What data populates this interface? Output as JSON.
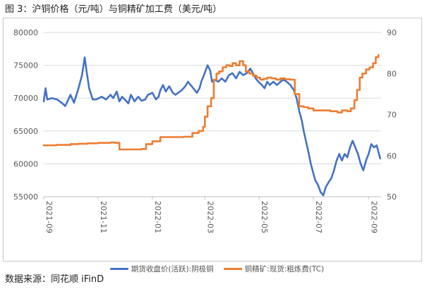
{
  "figure_title": "图 3：沪铜价格（元/吨）与铜精矿加工费（美元/吨）",
  "source_note": "数据来源：同花顺 iFinD",
  "chart_data": {
    "type": "line",
    "left_axis": {
      "ylim": [
        55000,
        80000
      ],
      "ticks": [
        "80000",
        "75000",
        "70000",
        "65000",
        "60000",
        "55000"
      ]
    },
    "right_axis": {
      "ylim": [
        50,
        90
      ],
      "ticks": [
        "90",
        "80",
        "70",
        "60",
        "50"
      ]
    },
    "x_range": [
      "2021-09-01",
      "2022-09-15"
    ],
    "x_ticks": [
      {
        "date": "2021-09-01",
        "label": "2021-09"
      },
      {
        "date": "2021-11-01",
        "label": "2021-11"
      },
      {
        "date": "2022-01-01",
        "label": "2022-01"
      },
      {
        "date": "2022-03-01",
        "label": "2022-03"
      },
      {
        "date": "2022-05-01",
        "label": "2022-05"
      },
      {
        "date": "2022-07-01",
        "label": "2022-07"
      },
      {
        "date": "2022-09-01",
        "label": "2022-09"
      }
    ],
    "series": [
      {
        "name": "期货收盘价(活跃):阴极铜",
        "axis": "left",
        "color": "#4472c4",
        "points": [
          [
            "2021-09-01",
            69500
          ],
          [
            "2021-09-03",
            71500
          ],
          [
            "2021-09-05",
            69800
          ],
          [
            "2021-09-10",
            70000
          ],
          [
            "2021-09-16",
            69800
          ],
          [
            "2021-09-22",
            69200
          ],
          [
            "2021-09-25",
            68800
          ],
          [
            "2021-09-28",
            69600
          ],
          [
            "2021-10-01",
            70500
          ],
          [
            "2021-10-05",
            69300
          ],
          [
            "2021-10-10",
            71500
          ],
          [
            "2021-10-14",
            73500
          ],
          [
            "2021-10-17",
            76200
          ],
          [
            "2021-10-19",
            74200
          ],
          [
            "2021-10-22",
            71500
          ],
          [
            "2021-10-26",
            69800
          ],
          [
            "2021-10-30",
            69800
          ],
          [
            "2021-11-05",
            70200
          ],
          [
            "2021-11-10",
            69800
          ],
          [
            "2021-11-15",
            70500
          ],
          [
            "2021-11-18",
            70000
          ],
          [
            "2021-11-22",
            71000
          ],
          [
            "2021-11-25",
            69500
          ],
          [
            "2021-11-28",
            70200
          ],
          [
            "2021-12-01",
            69800
          ],
          [
            "2021-12-05",
            69200
          ],
          [
            "2021-12-08",
            70500
          ],
          [
            "2021-12-12",
            69500
          ],
          [
            "2021-12-16",
            70200
          ],
          [
            "2021-12-20",
            69600
          ],
          [
            "2021-12-24",
            69800
          ],
          [
            "2021-12-27",
            70500
          ],
          [
            "2022-01-01",
            70800
          ],
          [
            "2022-01-05",
            69800
          ],
          [
            "2022-01-08",
            70200
          ],
          [
            "2022-01-10",
            71200
          ],
          [
            "2022-01-13",
            72000
          ],
          [
            "2022-01-16",
            71000
          ],
          [
            "2022-01-20",
            71800
          ],
          [
            "2022-01-24",
            70800
          ],
          [
            "2022-01-27",
            70500
          ],
          [
            "2022-01-30",
            70800
          ],
          [
            "2022-02-03",
            71200
          ],
          [
            "2022-02-07",
            71800
          ],
          [
            "2022-02-10",
            72500
          ],
          [
            "2022-02-13",
            72000
          ],
          [
            "2022-02-16",
            71500
          ],
          [
            "2022-02-20",
            70800
          ],
          [
            "2022-02-23",
            71500
          ],
          [
            "2022-02-25",
            72500
          ],
          [
            "2022-02-28",
            73500
          ],
          [
            "2022-03-04",
            75000
          ],
          [
            "2022-03-07",
            74200
          ],
          [
            "2022-03-09",
            72500
          ],
          [
            "2022-03-12",
            72800
          ],
          [
            "2022-03-16",
            72500
          ],
          [
            "2022-03-20",
            73000
          ],
          [
            "2022-03-24",
            72500
          ],
          [
            "2022-03-28",
            73500
          ],
          [
            "2022-04-01",
            73800
          ],
          [
            "2022-04-05",
            73000
          ],
          [
            "2022-04-09",
            74000
          ],
          [
            "2022-04-13",
            73500
          ],
          [
            "2022-04-17",
            73800
          ],
          [
            "2022-04-21",
            74500
          ],
          [
            "2022-04-24",
            73800
          ],
          [
            "2022-04-27",
            73000
          ],
          [
            "2022-04-30",
            72500
          ],
          [
            "2022-05-04",
            72000
          ],
          [
            "2022-05-07",
            71500
          ],
          [
            "2022-05-10",
            72500
          ],
          [
            "2022-05-13",
            72000
          ],
          [
            "2022-05-17",
            72500
          ],
          [
            "2022-05-21",
            72000
          ],
          [
            "2022-05-25",
            72500
          ],
          [
            "2022-05-28",
            72800
          ],
          [
            "2022-06-01",
            72500
          ],
          [
            "2022-06-05",
            72000
          ],
          [
            "2022-06-09",
            71200
          ],
          [
            "2022-06-12",
            70000
          ],
          [
            "2022-06-15",
            68000
          ],
          [
            "2022-06-18",
            66500
          ],
          [
            "2022-06-20",
            65000
          ],
          [
            "2022-06-22",
            63800
          ],
          [
            "2022-06-25",
            62000
          ],
          [
            "2022-06-28",
            60000
          ],
          [
            "2022-07-01",
            58500
          ],
          [
            "2022-07-03",
            57500
          ],
          [
            "2022-07-06",
            56800
          ],
          [
            "2022-07-09",
            55700
          ],
          [
            "2022-07-12",
            55200
          ],
          [
            "2022-07-15",
            56500
          ],
          [
            "2022-07-18",
            57200
          ],
          [
            "2022-07-21",
            57800
          ],
          [
            "2022-07-24",
            59000
          ],
          [
            "2022-07-27",
            60500
          ],
          [
            "2022-07-30",
            61500
          ],
          [
            "2022-08-02",
            60500
          ],
          [
            "2022-08-05",
            61500
          ],
          [
            "2022-08-08",
            61000
          ],
          [
            "2022-08-11",
            62500
          ],
          [
            "2022-08-14",
            63500
          ],
          [
            "2022-08-17",
            62500
          ],
          [
            "2022-08-20",
            61500
          ],
          [
            "2022-08-23",
            60000
          ],
          [
            "2022-08-26",
            59000
          ],
          [
            "2022-08-29",
            60500
          ],
          [
            "2022-09-01",
            61500
          ],
          [
            "2022-09-04",
            63000
          ],
          [
            "2022-09-07",
            62500
          ],
          [
            "2022-09-10",
            62800
          ],
          [
            "2022-09-14",
            60800
          ]
        ]
      },
      {
        "name": "铜精矿:现货:粗炼费(TC)",
        "axis": "right",
        "color": "#ed7d31",
        "step": true,
        "points": [
          [
            "2021-09-01",
            62.5
          ],
          [
            "2021-09-15",
            62.6
          ],
          [
            "2021-10-01",
            62.8
          ],
          [
            "2021-10-10",
            62.9
          ],
          [
            "2021-10-20",
            63.0
          ],
          [
            "2021-11-01",
            63.1
          ],
          [
            "2021-11-15",
            63.2
          ],
          [
            "2021-11-20",
            63.1
          ],
          [
            "2021-11-25",
            61.5
          ],
          [
            "2021-12-01",
            61.5
          ],
          [
            "2021-12-20",
            61.6
          ],
          [
            "2021-12-25",
            62.8
          ],
          [
            "2022-01-01",
            63.5
          ],
          [
            "2022-01-10",
            64.5
          ],
          [
            "2022-01-25",
            64.5
          ],
          [
            "2022-02-05",
            64.6
          ],
          [
            "2022-02-15",
            65.5
          ],
          [
            "2022-02-22",
            66.0
          ],
          [
            "2022-02-27",
            67.0
          ],
          [
            "2022-03-01",
            69.5
          ],
          [
            "2022-03-04",
            72.0
          ],
          [
            "2022-03-08",
            74.0
          ],
          [
            "2022-03-11",
            78.5
          ],
          [
            "2022-03-14",
            80.0
          ],
          [
            "2022-03-17",
            80.5
          ],
          [
            "2022-03-21",
            81.5
          ],
          [
            "2022-03-25",
            82.0
          ],
          [
            "2022-03-29",
            81.8
          ],
          [
            "2022-04-01",
            82.5
          ],
          [
            "2022-04-05",
            82.0
          ],
          [
            "2022-04-09",
            83.0
          ],
          [
            "2022-04-13",
            82.0
          ],
          [
            "2022-04-16",
            80.5
          ],
          [
            "2022-04-20",
            80.0
          ],
          [
            "2022-04-24",
            79.5
          ],
          [
            "2022-04-28",
            79.0
          ],
          [
            "2022-05-02",
            78.5
          ],
          [
            "2022-05-06",
            78.7
          ],
          [
            "2022-05-10",
            79.0
          ],
          [
            "2022-05-15",
            78.8
          ],
          [
            "2022-05-20",
            78.5
          ],
          [
            "2022-05-25",
            78.8
          ],
          [
            "2022-05-30",
            78.6
          ],
          [
            "2022-06-05",
            78.5
          ],
          [
            "2022-06-10",
            75.0
          ],
          [
            "2022-06-15",
            72.0
          ],
          [
            "2022-06-20",
            71.8
          ],
          [
            "2022-06-25",
            71.5
          ],
          [
            "2022-07-01",
            71.0
          ],
          [
            "2022-07-10",
            71.0
          ],
          [
            "2022-07-20",
            70.8
          ],
          [
            "2022-07-28",
            70.5
          ],
          [
            "2022-08-02",
            71.0
          ],
          [
            "2022-08-08",
            70.8
          ],
          [
            "2022-08-12",
            71.5
          ],
          [
            "2022-08-16",
            73.5
          ],
          [
            "2022-08-19",
            76.0
          ],
          [
            "2022-08-22",
            79.0
          ],
          [
            "2022-08-25",
            80.0
          ],
          [
            "2022-08-29",
            81.0
          ],
          [
            "2022-09-02",
            81.5
          ],
          [
            "2022-09-06",
            82.5
          ],
          [
            "2022-09-09",
            84.0
          ],
          [
            "2022-09-12",
            84.5
          ]
        ]
      }
    ]
  }
}
